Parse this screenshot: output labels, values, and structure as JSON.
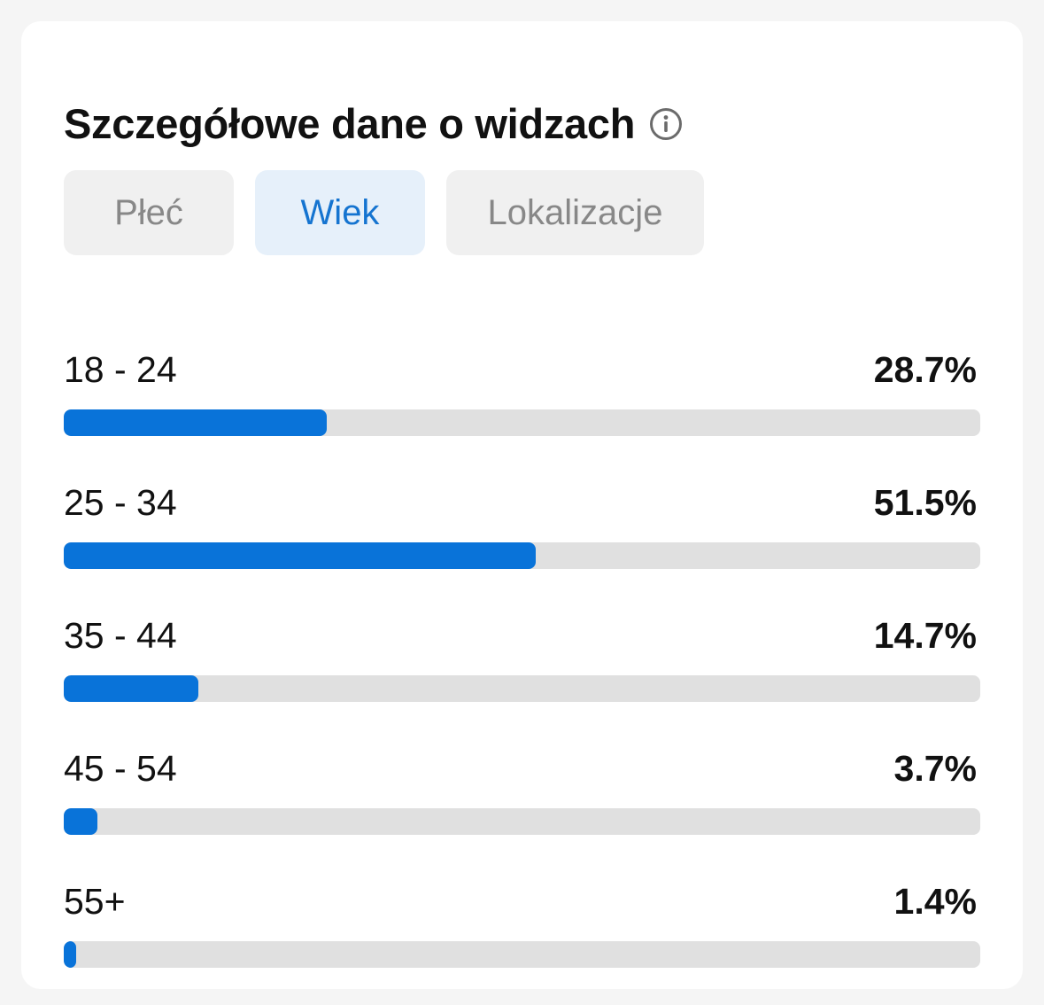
{
  "header": {
    "title": "Szczegółowe dane o widzach",
    "info_icon": "info-circle-icon"
  },
  "tabs": [
    {
      "label": "Płeć",
      "active": false
    },
    {
      "label": "Wiek",
      "active": true
    },
    {
      "label": "Lokalizacje",
      "active": false
    }
  ],
  "age_rows": [
    {
      "label": "18 - 24",
      "value_text": "28.7%",
      "percent": 28.7
    },
    {
      "label": "25 - 34",
      "value_text": "51.5%",
      "percent": 51.5
    },
    {
      "label": "35 - 44",
      "value_text": "14.7%",
      "percent": 14.7
    },
    {
      "label": "45 - 54",
      "value_text": "3.7%",
      "percent": 3.7
    },
    {
      "label": "55+",
      "value_text": "1.4%",
      "percent": 1.4
    }
  ],
  "colors": {
    "accent": "#0973d9",
    "active_tab_bg": "#e6f0fa",
    "track": "#e0e0e0"
  }
}
